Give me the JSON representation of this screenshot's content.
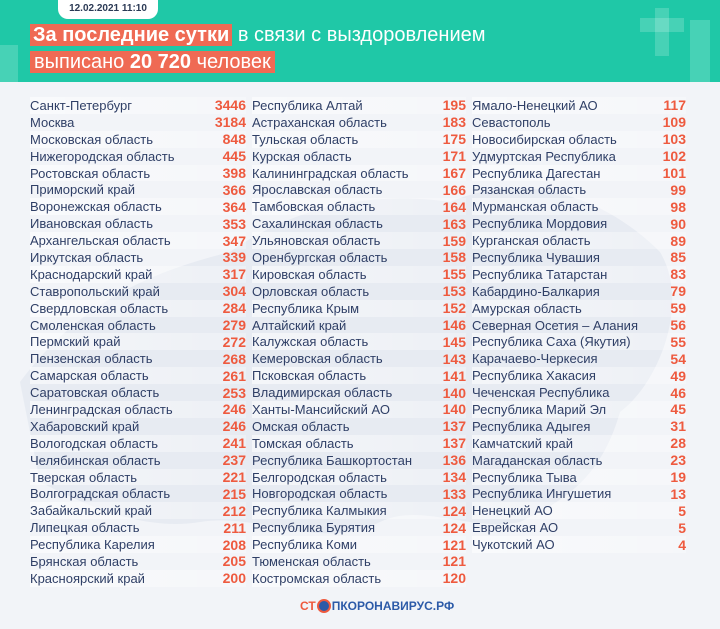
{
  "header": {
    "date": "12.02.2021 11:10",
    "line1_highlight": "За последние сутки",
    "line1_rest": " в связи с выздоровлением",
    "line2_prefix": "выписано ",
    "line2_number": "20 720",
    "line2_suffix": " человек"
  },
  "colors": {
    "header_bg": "#1fc8a7",
    "highlight": "#ef6a54",
    "value": "#ee5a3f",
    "name": "#2f3f66"
  },
  "columns": [
    [
      [
        "Санкт-Петербург",
        "3446"
      ],
      [
        "Москва",
        "3184"
      ],
      [
        "Московская область",
        "848"
      ],
      [
        "Нижегородская область",
        "445"
      ],
      [
        "Ростовская область",
        "398"
      ],
      [
        "Приморский край",
        "366"
      ],
      [
        "Воронежская область",
        "364"
      ],
      [
        "Ивановская область",
        "353"
      ],
      [
        "Архангельская область",
        "347"
      ],
      [
        "Иркутская область",
        "339"
      ],
      [
        "Краснодарский край",
        "317"
      ],
      [
        "Ставропольский край",
        "304"
      ],
      [
        "Свердловская область",
        "284"
      ],
      [
        "Смоленская область",
        "279"
      ],
      [
        "Пермский край",
        "272"
      ],
      [
        "Пензенская область",
        "268"
      ],
      [
        "Самарская область",
        "261"
      ],
      [
        "Саратовская область",
        "253"
      ],
      [
        "Ленинградская область",
        "246"
      ],
      [
        "Хабаровский край",
        "246"
      ],
      [
        "Вологодская область",
        "241"
      ],
      [
        "Челябинская область",
        "237"
      ],
      [
        "Тверская область",
        "221"
      ],
      [
        "Волгоградская область",
        "215"
      ],
      [
        "Забайкальский край",
        "212"
      ],
      [
        "Липецкая область",
        "211"
      ],
      [
        "Республика Карелия",
        "208"
      ],
      [
        "Брянская область",
        "205"
      ],
      [
        "Красноярский край",
        "200"
      ]
    ],
    [
      [
        "Республика Алтай",
        "195"
      ],
      [
        "Астраханская область",
        "183"
      ],
      [
        "Тульская область",
        "175"
      ],
      [
        "Курская область",
        "171"
      ],
      [
        "Калининградская область",
        "167"
      ],
      [
        "Ярославская область",
        "166"
      ],
      [
        "Тамбовская область",
        "164"
      ],
      [
        "Сахалинская область",
        "163"
      ],
      [
        "Ульяновская область",
        "159"
      ],
      [
        "Оренбургская область",
        "158"
      ],
      [
        "Кировская область",
        "155"
      ],
      [
        "Орловская область",
        "153"
      ],
      [
        "Республика Крым",
        "152"
      ],
      [
        "Алтайский край",
        "146"
      ],
      [
        "Калужская область",
        "145"
      ],
      [
        "Кемеровская область",
        "143"
      ],
      [
        "Псковская область",
        "141"
      ],
      [
        "Владимирская область",
        "140"
      ],
      [
        "Ханты-Мансийский АО",
        "140"
      ],
      [
        "Омская область",
        "137"
      ],
      [
        "Томская область",
        "137"
      ],
      [
        "Республика Башкортостан",
        "136"
      ],
      [
        "Белгородская область",
        "134"
      ],
      [
        "Новгородская область",
        "133"
      ],
      [
        "Республика Калмыкия",
        "124"
      ],
      [
        "Республика Бурятия",
        "124"
      ],
      [
        "Республика Коми",
        "121"
      ],
      [
        "Тюменская область",
        "121"
      ],
      [
        "Костромская область",
        "120"
      ]
    ],
    [
      [
        "Ямало-Ненецкий АО",
        "117"
      ],
      [
        "Севастополь",
        "109"
      ],
      [
        "Новосибирская область",
        "103"
      ],
      [
        "Удмуртская Республика",
        "102"
      ],
      [
        "Республика Дагестан",
        "101"
      ],
      [
        "Рязанская область",
        "99"
      ],
      [
        "Мурманская область",
        "98"
      ],
      [
        "Республика Мордовия",
        "90"
      ],
      [
        "Курганская область",
        "89"
      ],
      [
        "Республика Чувашия",
        "85"
      ],
      [
        "Республика Татарстан",
        "83"
      ],
      [
        "Кабардино-Балкария",
        "79"
      ],
      [
        "Амурская область",
        "59"
      ],
      [
        "Северная Осетия – Алания",
        "56"
      ],
      [
        "Республика Саха (Якутия)",
        "55"
      ],
      [
        "Карачаево-Черкесия",
        "54"
      ],
      [
        "Республика Хакасия",
        "49"
      ],
      [
        "Чеченская Республика",
        "46"
      ],
      [
        "Республика Марий Эл",
        "45"
      ],
      [
        "Республика Адыгея",
        "31"
      ],
      [
        "Камчатский край",
        "28"
      ],
      [
        "Магаданская область",
        "23"
      ],
      [
        "Республика Тыва",
        "19"
      ],
      [
        "Республика Ингушетия",
        "13"
      ],
      [
        "Ненецкий АО",
        "5"
      ],
      [
        "Еврейская АО",
        "5"
      ],
      [
        "Чукотский АО",
        "4"
      ]
    ]
  ],
  "footer": {
    "logo_part1": "СТ",
    "logo_part2": "ПКОРОНАВИРУС.РФ",
    "logo_icon": "virus-stop-icon"
  }
}
